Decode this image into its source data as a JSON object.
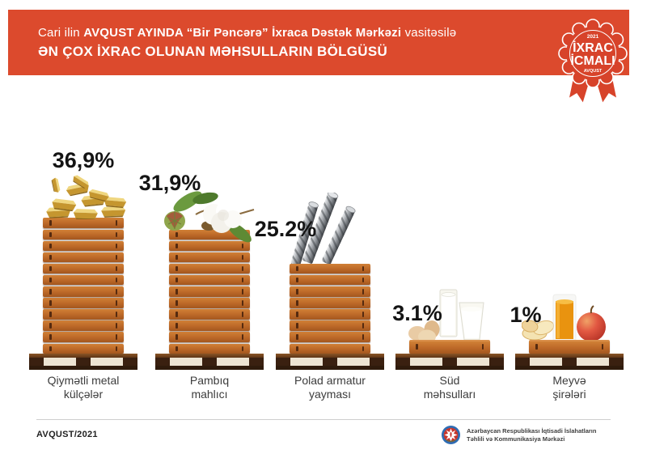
{
  "header": {
    "line1_prefix": "Cari ilin",
    "line1_bold": "AVQUST AYINDA “Bir Pəncərə” İxraca Dəstək Mərkəzi",
    "line1_suffix": "vasitəsilə",
    "line2": "ƏN ÇOX İXRAC OLUNAN MƏHSULLARIN BÖLGÜSÜ"
  },
  "badge": {
    "year": "2021",
    "title_line1": "İXRAC",
    "title_line2": "İCMALI",
    "subtitle": "AVQUST"
  },
  "chart_data": {
    "type": "bar",
    "title": "Cari ilin avqust ayında “Bir Pəncərə” İxraca Dəstək Mərkəzi vasitəsilə ən çox ixrac olunan məhsulların bölgüsü",
    "unit": "%",
    "categories": [
      "Qiymətli metal külçələr",
      "Pambıq mahlıcı",
      "Polad armatur yayması",
      "Süd məhsulları",
      "Meyvə şirələri"
    ],
    "categories_display": [
      "Qiymətli metal\nkülçələr",
      "Pambıq\nmahlıcı",
      "Polad armatur\nyayması",
      "Süd\nməhsulları",
      "Meyvə\nşirələri"
    ],
    "values": [
      36.9,
      31.9,
      25.2,
      3.1,
      1
    ],
    "value_labels": [
      "36,9%",
      "31,9%",
      "25.2%",
      "3.1%",
      "1%"
    ],
    "crate_counts": [
      12,
      11,
      8,
      1,
      1
    ],
    "icons": [
      "gold-ingots",
      "cotton-lint",
      "steel-rebar",
      "milk-and-eggs",
      "fruit-juice"
    ],
    "ylim": [
      0,
      40
    ],
    "legend": "none",
    "grid": false
  },
  "footer": {
    "left_text": "AVQUST/2021",
    "org_line1": "Azərbaycan Respublikası İqtisadi İslahatların",
    "org_line2": "Təhlili və Kommunikasiya Mərkəzi"
  },
  "colors": {
    "banner_red": "#DC4A2D",
    "badge_red": "#D7432A",
    "crate_orange": "#BC6828",
    "pallet_dark": "#3A2010",
    "pallet_cream": "#EDE4D3",
    "value_text": "#141414",
    "label_gray": "#3C3C3C"
  }
}
